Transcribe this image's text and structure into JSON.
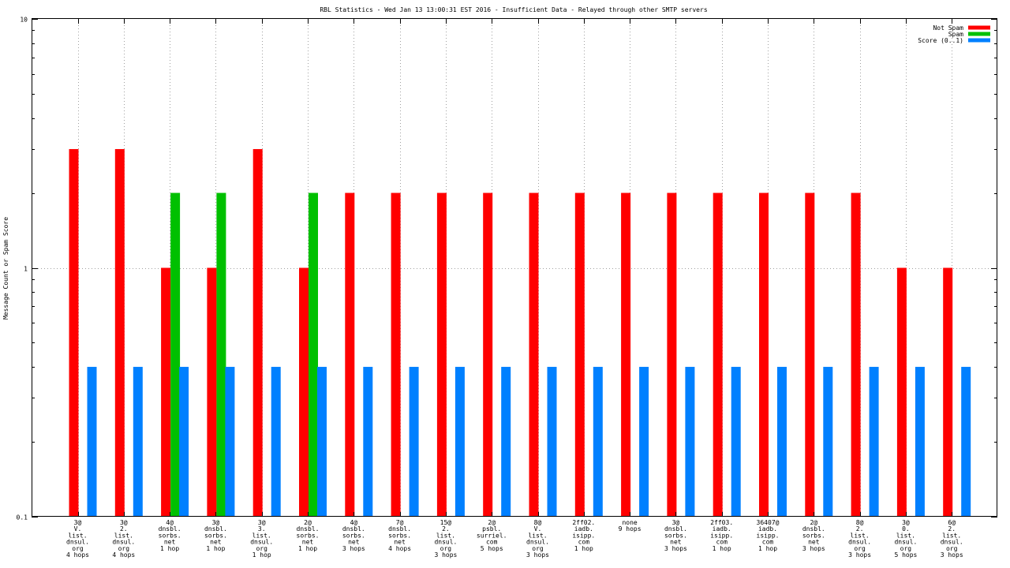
{
  "chart_data": {
    "type": "bar",
    "title": "RBL Statistics - Wed Jan 13 13:00:31 EST 2016 - Insufficient Data - Relayed through other SMTP servers",
    "xlabel": "",
    "ylabel": "Message Count or Spam Score",
    "yscale": "log",
    "ylim": [
      0.1,
      10
    ],
    "yticks": [
      {
        "value": 0.1,
        "label": "0.1"
      },
      {
        "value": 1,
        "label": "1"
      },
      {
        "value": 10,
        "label": "10"
      }
    ],
    "grid": true,
    "legend_position": "top-right",
    "categories": [
      [
        "3@",
        "V.",
        "list.",
        "dnsul.",
        "org",
        "4 hops"
      ],
      [
        "3@",
        "2.",
        "list.",
        "dnsul.",
        "org",
        "4 hops"
      ],
      [
        "4@",
        "dnsbl.",
        "sorbs.",
        "net",
        "1 hop"
      ],
      [
        "3@",
        "dnsbl.",
        "sorbs.",
        "net",
        "1 hop"
      ],
      [
        "3@",
        "3.",
        "list.",
        "dnsul.",
        "org",
        "1 hop"
      ],
      [
        "2@",
        "dnsbl.",
        "sorbs.",
        "net",
        "1 hop"
      ],
      [
        "4@",
        "dnsbl.",
        "sorbs.",
        "net",
        "3 hops"
      ],
      [
        "7@",
        "dnsbl.",
        "sorbs.",
        "net",
        "4 hops"
      ],
      [
        "15@",
        "2.",
        "list.",
        "dnsul.",
        "org",
        "3 hops"
      ],
      [
        "2@",
        "psbl.",
        "surriel.",
        "com",
        "5 hops"
      ],
      [
        "8@",
        "V.",
        "list.",
        "dnsul.",
        "org",
        "3 hops"
      ],
      [
        "2ff02.",
        "iadb.",
        "isipp.",
        "com",
        "1 hop"
      ],
      [
        "none",
        "9 hops"
      ],
      [
        "3@",
        "dnsbl.",
        "sorbs.",
        "net",
        "3 hops"
      ],
      [
        "2ff03.",
        "iadb.",
        "isipp.",
        "com",
        "1 hop"
      ],
      [
        "36407@",
        "iadb.",
        "isipp.",
        "com",
        "1 hop"
      ],
      [
        "2@",
        "dnsbl.",
        "sorbs.",
        "net",
        "3 hops"
      ],
      [
        "8@",
        "2.",
        "list.",
        "dnsul.",
        "org",
        "3 hops"
      ],
      [
        "3@",
        "0.",
        "list.",
        "dnsul.",
        "org",
        "5 hops"
      ],
      [
        "6@",
        "2.",
        "list.",
        "dnsul.",
        "org",
        "3 hops"
      ]
    ],
    "series": [
      {
        "name": "Not Spam",
        "color": "#ff0000",
        "values": [
          3,
          3,
          1,
          1,
          3,
          1,
          2,
          2,
          2,
          2,
          2,
          2,
          2,
          2,
          2,
          2,
          2,
          2,
          1,
          1
        ]
      },
      {
        "name": "Spam",
        "color": "#00c000",
        "values": [
          0,
          0,
          2,
          2,
          0,
          2,
          0,
          0,
          0,
          0,
          0,
          0,
          0,
          0,
          0,
          0,
          0,
          0,
          0,
          0
        ]
      },
      {
        "name": "Score (0..1)",
        "color": "#0080ff",
        "values": [
          0.4,
          0.4,
          0.4,
          0.4,
          0.4,
          0.4,
          0.4,
          0.4,
          0.4,
          0.4,
          0.4,
          0.4,
          0.4,
          0.4,
          0.4,
          0.4,
          0.4,
          0.4,
          0.4,
          0.4
        ]
      }
    ]
  }
}
